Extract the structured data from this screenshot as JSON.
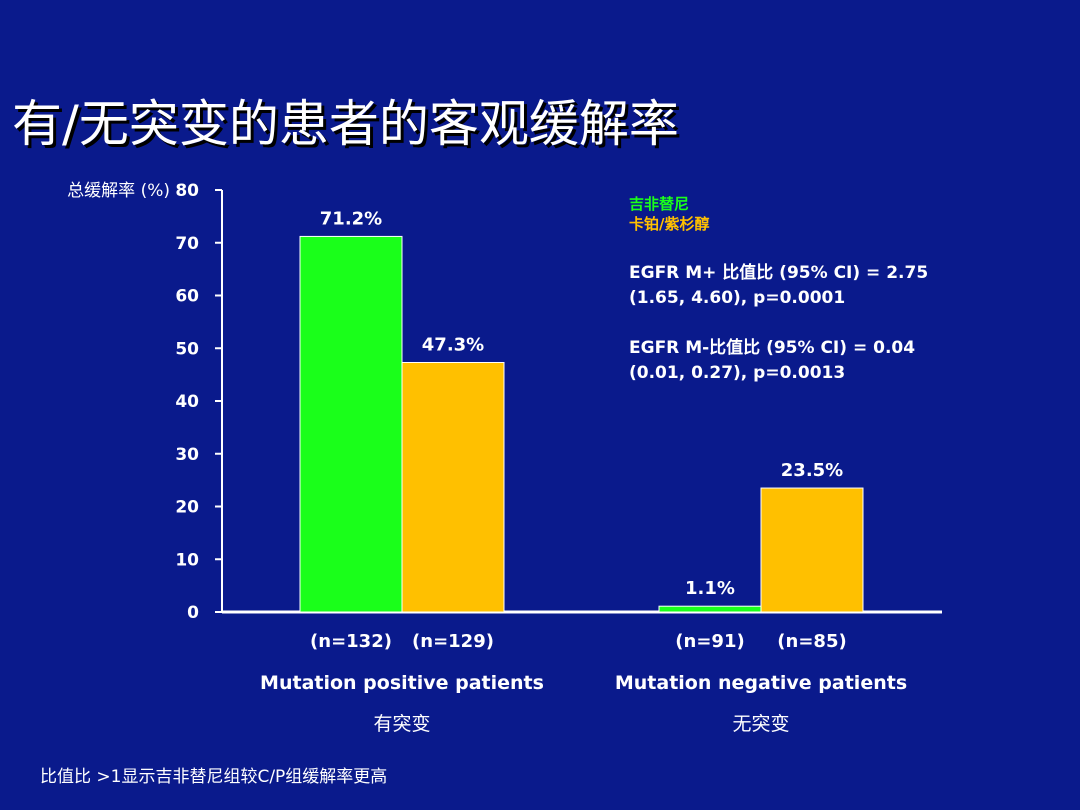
{
  "title": "有/无突变的患者的客观缓解率",
  "legend": {
    "items": [
      {
        "label": "吉非替尼",
        "color": "#1aff1a"
      },
      {
        "label": "卡铂/紫杉醇",
        "color": "#ffc000"
      }
    ]
  },
  "stats": {
    "m_plus_line1": "EGFR M+ 比值比 (95% CI) = 2.75",
    "m_plus_line2": "(1.65, 4.60), p=0.0001",
    "m_minus_line1": "EGFR M-比值比 (95% CI) = 0.04",
    "m_minus_line2": "(0.01, 0.27), p=0.0013"
  },
  "footnote": "比值比 >1显示吉非替尼组较C/P组缓解率更高",
  "chart_data": {
    "type": "bar",
    "ylabel": "总缓解率 (%)",
    "ylim": [
      0,
      80
    ],
    "yticks": [
      0,
      10,
      20,
      30,
      40,
      50,
      60,
      70,
      80
    ],
    "groups": [
      {
        "label": "Mutation positive patients",
        "sublabel": "有突变"
      },
      {
        "label": "Mutation negative patients",
        "sublabel": "无突变"
      }
    ],
    "series": [
      {
        "name": "吉非替尼",
        "color": "#1aff1a",
        "values": [
          71.2,
          1.1
        ],
        "value_labels": [
          "71.2%",
          "1.1%"
        ],
        "n_labels": [
          "(n=132)",
          "(n=91)"
        ]
      },
      {
        "name": "卡铂/紫杉醇",
        "color": "#ffc000",
        "values": [
          47.3,
          23.5
        ],
        "value_labels": [
          "47.3%",
          "23.5%"
        ],
        "n_labels": [
          "(n=129)",
          "(n=85)"
        ]
      }
    ]
  }
}
